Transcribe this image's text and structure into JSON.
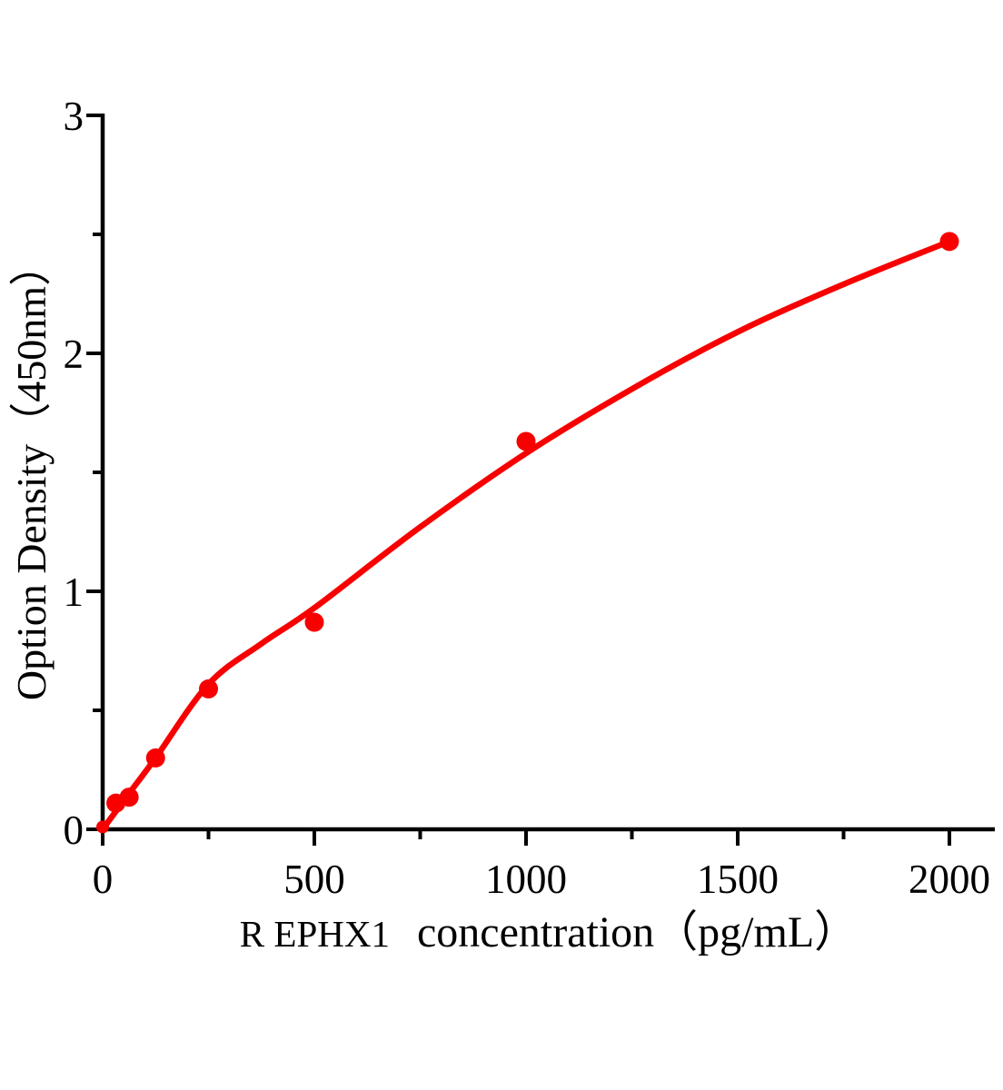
{
  "figure": {
    "background": "#ffffff",
    "axis_color": "#000000",
    "accent_color": "#f80000"
  },
  "chart_data": {
    "type": "scatter",
    "title": "",
    "xlabel_prefix": "R EPHX1",
    "xlabel_main": "concentration（pg/mL）",
    "ylabel": "Option Density（450nm）",
    "xlim": [
      0,
      2107
    ],
    "ylim": [
      0,
      3
    ],
    "x_ticks": [
      0,
      500,
      1000,
      1500,
      2000
    ],
    "x_minor_ticks": [
      250,
      750,
      1250,
      1750
    ],
    "y_ticks": [
      0,
      1,
      2,
      3
    ],
    "y_minor_ticks": [
      0.5,
      1.5,
      2.5
    ],
    "grid": false,
    "legend": null,
    "series": [
      {
        "name": "fit-curve",
        "type": "line",
        "color": "#f80000",
        "points": [
          [
            0,
            0.0
          ],
          [
            31,
            0.075
          ],
          [
            62,
            0.15
          ],
          [
            125,
            0.3
          ],
          [
            250,
            0.61
          ],
          [
            375,
            0.78
          ],
          [
            500,
            0.93
          ],
          [
            750,
            1.27
          ],
          [
            1000,
            1.58
          ],
          [
            1250,
            1.85
          ],
          [
            1500,
            2.09
          ],
          [
            1750,
            2.29
          ],
          [
            2000,
            2.47
          ]
        ]
      },
      {
        "name": "standard-points",
        "type": "scatter",
        "color": "#f80000",
        "marker_radius": 10.5,
        "points": [
          [
            0,
            0.01,
            7
          ],
          [
            31.25,
            0.11
          ],
          [
            62.5,
            0.135
          ],
          [
            125,
            0.3
          ],
          [
            250,
            0.59
          ],
          [
            500,
            0.87
          ],
          [
            1000,
            1.63
          ],
          [
            2000,
            2.47
          ]
        ]
      }
    ]
  }
}
